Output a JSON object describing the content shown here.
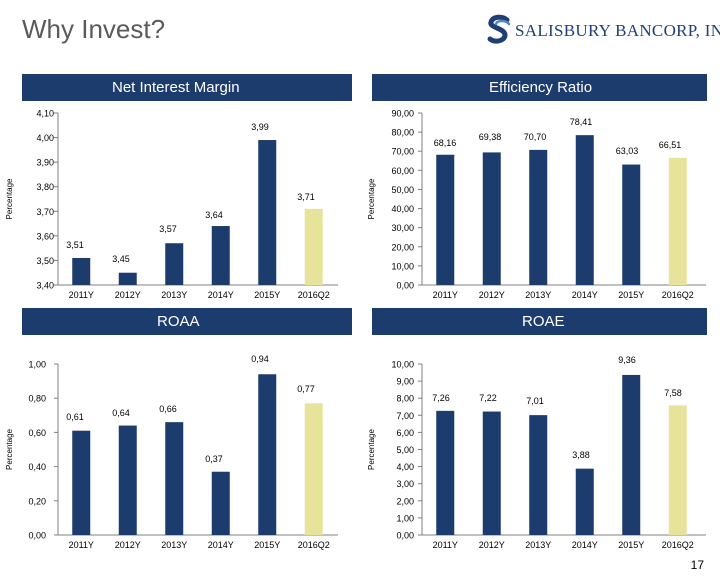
{
  "header": {
    "title": "Why Invest?",
    "logo_text": "SALISBURY BANCORP, INC."
  },
  "colors": {
    "bar": "#1d3c6e",
    "highlight_bar": "#e8e39a",
    "banner": "#1d3c6e"
  },
  "page_number": "17",
  "chart_data": [
    {
      "id": "nim",
      "type": "bar",
      "title": "Net Interest Margin",
      "ylabel": "Percentage",
      "categories": [
        "2011Y",
        "2012Y",
        "2013Y",
        "2014Y",
        "2015Y",
        "2016Q2"
      ],
      "values": [
        3.51,
        3.45,
        3.57,
        3.64,
        3.99,
        3.71
      ],
      "labels": [
        "3,51",
        "3,45",
        "3,57",
        "3,64",
        "3,99",
        "3,71"
      ],
      "ylim": [
        3.4,
        4.1
      ],
      "ticks": [
        3.4,
        3.5,
        3.6,
        3.7,
        3.8,
        3.9,
        4.0,
        4.1
      ],
      "tick_labels": [
        "3,40",
        "3,50",
        "3,60",
        "3,70",
        "3,80",
        "3,90",
        "4,00",
        "4,10"
      ],
      "highlight_index": 5
    },
    {
      "id": "eff",
      "type": "bar",
      "title": "Efficiency Ratio",
      "ylabel": "Percentage",
      "categories": [
        "2011Y",
        "2012Y",
        "2013Y",
        "2014Y",
        "2015Y",
        "2016Q2"
      ],
      "values": [
        68.16,
        69.38,
        70.7,
        78.41,
        63.03,
        66.51
      ],
      "labels": [
        "68,16",
        "69,38",
        "70,70",
        "78,41",
        "63,03",
        "66,51"
      ],
      "ylim": [
        0,
        90
      ],
      "ticks": [
        0,
        10,
        20,
        30,
        40,
        50,
        60,
        70,
        80,
        90
      ],
      "tick_labels": [
        "0,00",
        "10,00",
        "20,00",
        "30,00",
        "40,00",
        "50,00",
        "60,00",
        "70,00",
        "80,00",
        "90,00"
      ],
      "highlight_index": 5
    },
    {
      "id": "roaa",
      "type": "bar",
      "title": "ROAA",
      "ylabel": "Percentage",
      "categories": [
        "2011Y",
        "2012Y",
        "2013Y",
        "2014Y",
        "2015Y",
        "2016Q2"
      ],
      "values": [
        0.61,
        0.64,
        0.66,
        0.37,
        0.94,
        0.77
      ],
      "labels": [
        "0,61",
        "0,64",
        "0,66",
        "0,37",
        "0,94",
        "0,77"
      ],
      "ylim": [
        0,
        1.0
      ],
      "ticks": [
        0,
        0.2,
        0.4,
        0.6,
        0.8,
        1.0
      ],
      "tick_labels": [
        "0,00",
        "0,20",
        "0,40",
        "0,60",
        "0,80",
        "1,00"
      ],
      "highlight_index": 5
    },
    {
      "id": "roae",
      "type": "bar",
      "title": "ROAE",
      "ylabel": "Percentage",
      "categories": [
        "2011Y",
        "2012Y",
        "2013Y",
        "2014Y",
        "2015Y",
        "2016Q2"
      ],
      "values": [
        7.26,
        7.22,
        7.01,
        3.88,
        9.36,
        7.58
      ],
      "labels": [
        "7,26",
        "7,22",
        "7,01",
        "3,88",
        "9,36",
        "7,58"
      ],
      "ylim": [
        0,
        10
      ],
      "ticks": [
        0,
        1,
        2,
        3,
        4,
        5,
        6,
        7,
        8,
        9,
        10
      ],
      "tick_labels": [
        "0,00",
        "1,00",
        "2,00",
        "3,00",
        "4,00",
        "5,00",
        "6,00",
        "7,00",
        "8,00",
        "9,00",
        "10,00"
      ],
      "highlight_index": 5
    }
  ]
}
